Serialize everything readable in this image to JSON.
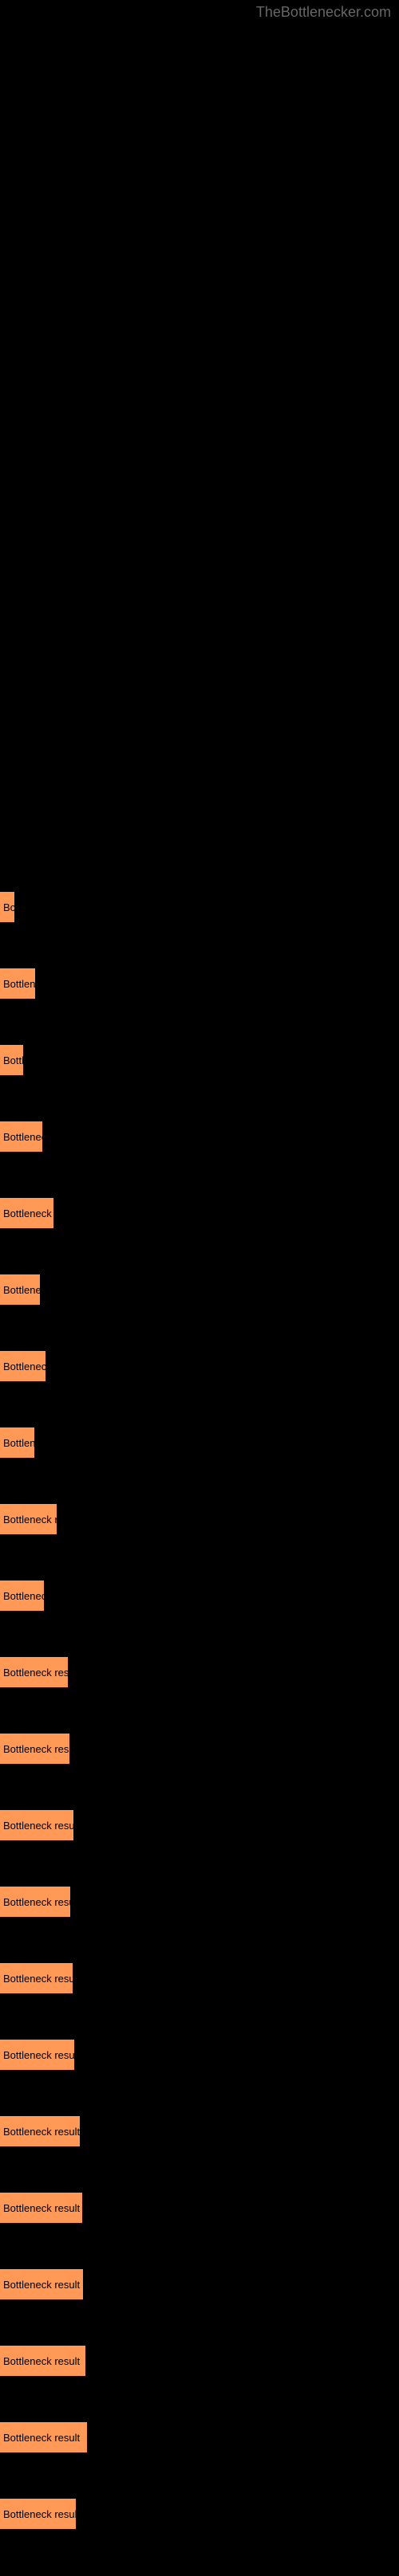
{
  "watermark": "TheBottlenecker.com",
  "chart": {
    "type": "bar",
    "bar_color": "#ff9955",
    "background_color": "#000000",
    "text_color": "#000000",
    "label_fontsize": 13,
    "bars": [
      {
        "label": "Bo",
        "width": 18
      },
      {
        "label": "Bottlene",
        "width": 44
      },
      {
        "label": "Bottl",
        "width": 29
      },
      {
        "label": "Bottleneck",
        "width": 53
      },
      {
        "label": "Bottleneck re",
        "width": 67
      },
      {
        "label": "Bottlenec",
        "width": 50
      },
      {
        "label": "Bottleneck",
        "width": 57
      },
      {
        "label": "Bottlene",
        "width": 43
      },
      {
        "label": "Bottleneck res",
        "width": 71
      },
      {
        "label": "Bottleneck",
        "width": 55
      },
      {
        "label": "Bottleneck result",
        "width": 85
      },
      {
        "label": "Bottleneck result",
        "width": 87
      },
      {
        "label": "Bottleneck result",
        "width": 92
      },
      {
        "label": "Bottleneck result",
        "width": 88
      },
      {
        "label": "Bottleneck result",
        "width": 91
      },
      {
        "label": "Bottleneck result",
        "width": 93
      },
      {
        "label": "Bottleneck result",
        "width": 100
      },
      {
        "label": "Bottleneck result",
        "width": 103
      },
      {
        "label": "Bottleneck result",
        "width": 104
      },
      {
        "label": "Bottleneck result",
        "width": 107
      },
      {
        "label": "Bottleneck result",
        "width": 109
      },
      {
        "label": "Bottleneck result",
        "width": 95
      }
    ]
  }
}
